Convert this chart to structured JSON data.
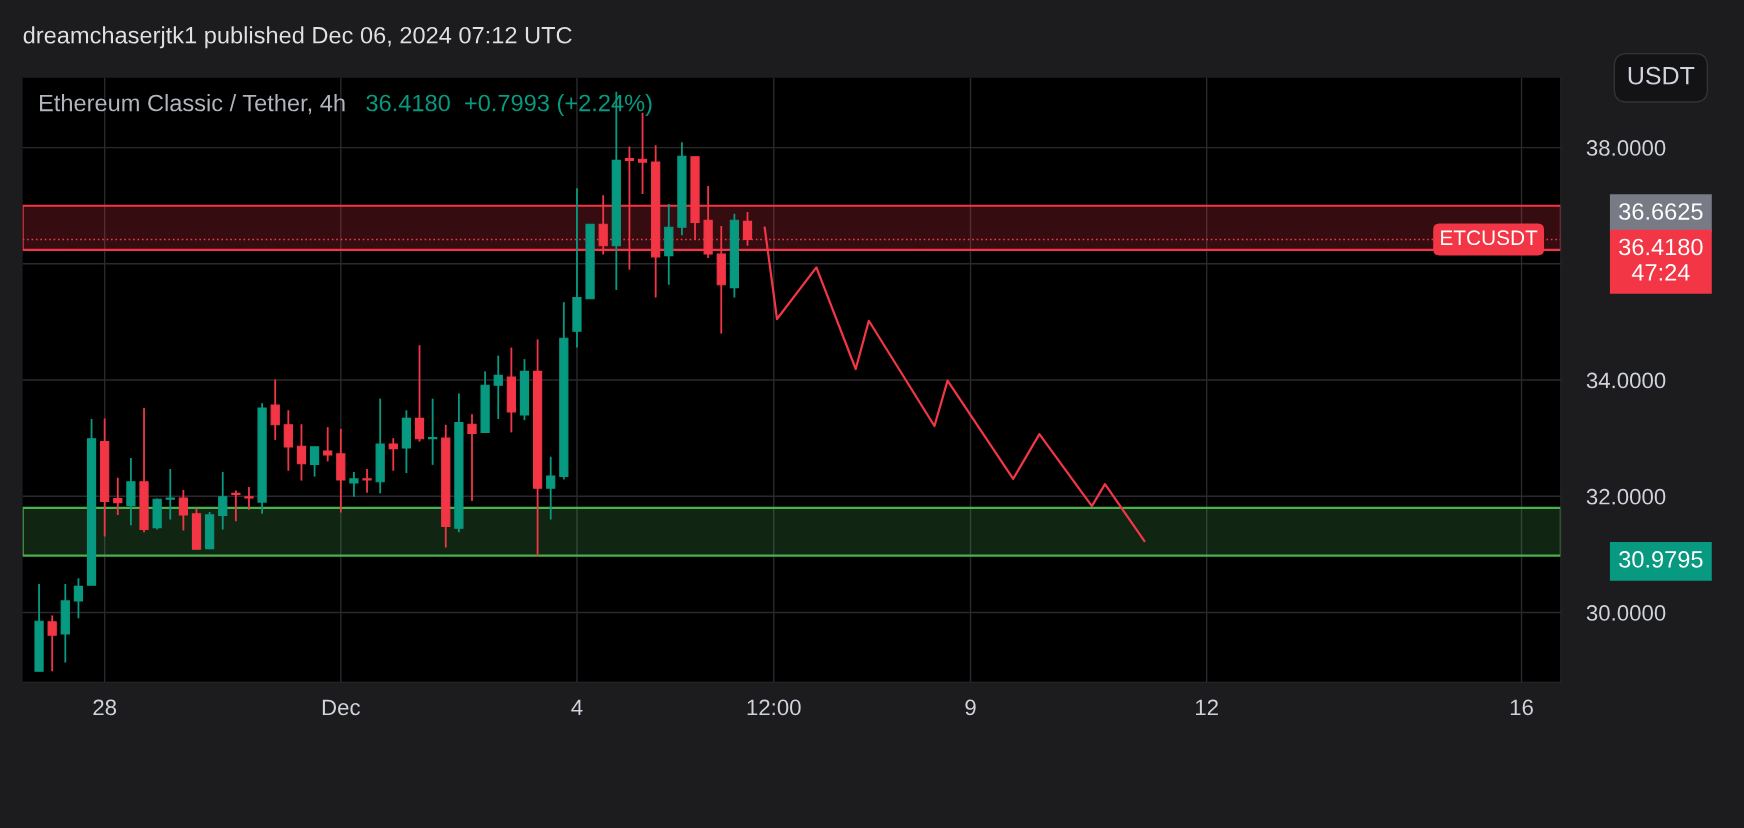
{
  "chart_data": {
    "type": "candlestick",
    "title": "Ethereum Classic / Tether, 4h",
    "subtitle": "36.4180  +0.7993 (+2.24%)",
    "ylabel": "USDT",
    "x": [
      "2024-11-27T04:00",
      "2024-11-27T08:00",
      "2024-11-27T12:00",
      "2024-11-27T16:00",
      "2024-11-27T20:00",
      "2024-11-28T00:00",
      "2024-11-28T04:00",
      "2024-11-28T08:00",
      "2024-11-28T12:00",
      "2024-11-28T16:00",
      "2024-11-28T20:00",
      "2024-11-29T00:00",
      "2024-11-29T04:00",
      "2024-11-29T08:00",
      "2024-11-29T12:00",
      "2024-11-29T16:00",
      "2024-11-29T20:00",
      "2024-11-30T00:00",
      "2024-11-30T04:00",
      "2024-11-30T08:00",
      "2024-11-30T12:00",
      "2024-11-30T16:00",
      "2024-11-30T20:00",
      "2024-12-01T00:00",
      "2024-12-01T04:00",
      "2024-12-01T08:00",
      "2024-12-01T12:00",
      "2024-12-01T16:00",
      "2024-12-01T20:00",
      "2024-12-02T00:00",
      "2024-12-02T04:00",
      "2024-12-02T08:00",
      "2024-12-02T12:00",
      "2024-12-02T16:00",
      "2024-12-02T20:00",
      "2024-12-03T00:00",
      "2024-12-03T04:00",
      "2024-12-03T08:00",
      "2024-12-03T12:00",
      "2024-12-03T16:00",
      "2024-12-03T20:00",
      "2024-12-04T00:00",
      "2024-12-04T04:00",
      "2024-12-04T08:00",
      "2024-12-04T12:00",
      "2024-12-04T16:00",
      "2024-12-04T20:00",
      "2024-12-05T00:00",
      "2024-12-05T04:00",
      "2024-12-05T08:00",
      "2024-12-05T12:00",
      "2024-12-05T16:00",
      "2024-12-05T20:00",
      "2024-12-06T00:00",
      "2024-12-06T04:00"
    ],
    "ohlc": [
      [
        28.99,
        30.49,
        28.99,
        29.85
      ],
      [
        29.84,
        29.95,
        28.99,
        29.61
      ],
      [
        29.63,
        30.49,
        29.14,
        30.2
      ],
      [
        30.2,
        30.59,
        29.9,
        30.45
      ],
      [
        30.47,
        33.33,
        30.47,
        32.99
      ],
      [
        32.94,
        33.34,
        31.31,
        31.91
      ],
      [
        31.96,
        32.32,
        31.68,
        31.89
      ],
      [
        31.84,
        32.66,
        31.5,
        32.25
      ],
      [
        32.25,
        33.52,
        31.38,
        31.43
      ],
      [
        31.46,
        31.96,
        31.43,
        31.95
      ],
      [
        31.95,
        32.47,
        31.6,
        31.97
      ],
      [
        31.97,
        32.11,
        31.41,
        31.68
      ],
      [
        31.7,
        31.79,
        31.09,
        31.09
      ],
      [
        31.1,
        31.73,
        31.09,
        31.68
      ],
      [
        31.67,
        32.42,
        31.43,
        31.99
      ],
      [
        32.05,
        32.1,
        31.57,
        32.03
      ],
      [
        31.99,
        32.16,
        31.77,
        31.97
      ],
      [
        31.9,
        33.6,
        31.7,
        33.52
      ],
      [
        33.57,
        34.01,
        32.97,
        33.23
      ],
      [
        33.23,
        33.48,
        32.44,
        32.85
      ],
      [
        32.86,
        33.24,
        32.27,
        32.56
      ],
      [
        32.55,
        32.85,
        32.34,
        32.85
      ],
      [
        32.78,
        33.19,
        32.6,
        32.71
      ],
      [
        32.73,
        33.16,
        31.72,
        32.28
      ],
      [
        32.23,
        32.42,
        31.99,
        32.3
      ],
      [
        32.3,
        32.47,
        32.06,
        32.28
      ],
      [
        32.25,
        33.68,
        32.05,
        32.9
      ],
      [
        32.9,
        33.0,
        32.44,
        32.82
      ],
      [
        32.83,
        33.48,
        32.4,
        33.34
      ],
      [
        33.34,
        34.6,
        32.94,
        32.99
      ],
      [
        32.99,
        33.68,
        32.54,
        33.01
      ],
      [
        33.0,
        33.23,
        31.12,
        31.48
      ],
      [
        31.45,
        33.77,
        31.38,
        33.27
      ],
      [
        33.24,
        33.41,
        31.92,
        33.08
      ],
      [
        33.1,
        34.15,
        33.1,
        33.91
      ],
      [
        33.91,
        34.42,
        33.33,
        34.08
      ],
      [
        34.05,
        34.56,
        33.1,
        33.45
      ],
      [
        33.4,
        34.36,
        33.31,
        34.15
      ],
      [
        34.15,
        34.7,
        30.97,
        32.14
      ],
      [
        32.14,
        32.68,
        31.6,
        32.35
      ],
      [
        32.34,
        35.34,
        32.29,
        34.72
      ],
      [
        34.84,
        37.3,
        34.56,
        35.42
      ],
      [
        35.4,
        36.68,
        35.4,
        36.68
      ],
      [
        36.68,
        37.18,
        36.16,
        36.31
      ],
      [
        36.31,
        38.96,
        35.55,
        37.78
      ],
      [
        37.81,
        38.02,
        35.9,
        37.78
      ],
      [
        37.8,
        38.6,
        37.2,
        37.75
      ],
      [
        37.75,
        38.04,
        35.42,
        36.12
      ],
      [
        36.14,
        37.03,
        35.64,
        36.63
      ],
      [
        36.63,
        38.09,
        36.49,
        37.85
      ],
      [
        37.84,
        37.84,
        36.41,
        36.71
      ],
      [
        36.75,
        37.34,
        36.1,
        36.17
      ],
      [
        36.17,
        36.65,
        34.8,
        35.64
      ],
      [
        35.59,
        36.86,
        35.42,
        36.75
      ],
      [
        36.73,
        36.89,
        36.31,
        36.418
      ]
    ],
    "colors": [
      "#089981",
      "#f23645",
      "#089981",
      "#089981",
      "#089981",
      "#f23645",
      "#f23645",
      "#089981",
      "#f23645",
      "#089981",
      "#089981",
      "#f23645",
      "#f23645",
      "#089981",
      "#089981",
      "#f23645",
      "#f23645",
      "#089981",
      "#f23645",
      "#f23645",
      "#f23645",
      "#089981",
      "#f23645",
      "#f23645",
      "#089981",
      "#f23645",
      "#089981",
      "#f23645",
      "#089981",
      "#f23645",
      "#089981",
      "#f23645",
      "#089981",
      "#f23645",
      "#089981",
      "#089981",
      "#f23645",
      "#089981",
      "#f23645",
      "#089981",
      "#089981",
      "#089981",
      "#089981",
      "#f23645",
      "#089981",
      "#f23645",
      "#f23645",
      "#f23645",
      "#089981",
      "#089981",
      "#f23645",
      "#f23645",
      "#f23645",
      "#089981",
      "#f23645"
    ],
    "series": [
      {
        "type": "line",
        "color": "#f23645",
        "x": [
          "2024-12-06T09:15",
          "2024-12-06T13:00",
          "2024-12-07T01:00",
          "2024-12-07T13:00",
          "2024-12-07T17:00",
          "2024-12-08T13:00",
          "2024-12-08T17:00",
          "2024-12-09T13:00",
          "2024-12-09T21:00",
          "2024-12-10T13:00",
          "2024-12-10T17:00",
          "2024-12-11T05:00"
        ],
        "values": [
          36.62,
          35.05,
          35.94,
          34.19,
          35.02,
          33.21,
          33.99,
          32.3,
          33.07,
          31.83,
          32.21,
          31.23
        ]
      }
    ],
    "bands": [
      {
        "axis": "y",
        "from": 30.9795,
        "to": 31.8,
        "color": "#4caf50"
      },
      {
        "axis": "y",
        "from": 36.24,
        "to": 37.0,
        "color": "#f23645"
      }
    ],
    "ref_lines": [
      {
        "axis": "y",
        "value": 36.418,
        "label": "ETCUSDT",
        "color": "#f23645",
        "line_style": "dotted"
      }
    ],
    "annotations": [
      "dreamchaserjtk1 published Dec 06, 2024 07:12 UTC",
      "36.6625",
      "36.4180\n47:24",
      "30.9795"
    ],
    "xlim": [
      "2024-11-26T23:00",
      "2024-12-16T12:00"
    ],
    "xticks": [
      {
        "value": "2024-11-28",
        "label": "28"
      },
      {
        "value": "2024-12-01",
        "label": "Dec"
      },
      {
        "value": "2024-12-04",
        "label": "4"
      },
      {
        "value": "2024-12-06T12:00",
        "label": "12:00"
      },
      {
        "value": "2024-12-09",
        "label": "9"
      },
      {
        "value": "2024-12-12",
        "label": "12"
      },
      {
        "value": "2024-12-16",
        "label": "16"
      }
    ],
    "ylim": [
      28.8,
      39.2
    ],
    "yticks": [
      {
        "value": 30,
        "label": "30.0000"
      },
      {
        "value": 32,
        "label": "32.0000"
      },
      {
        "value": 34,
        "label": "34.0000"
      },
      {
        "value": 36,
        "label": null
      },
      {
        "value": 38,
        "label": "38.0000"
      }
    ],
    "grid": true
  }
}
